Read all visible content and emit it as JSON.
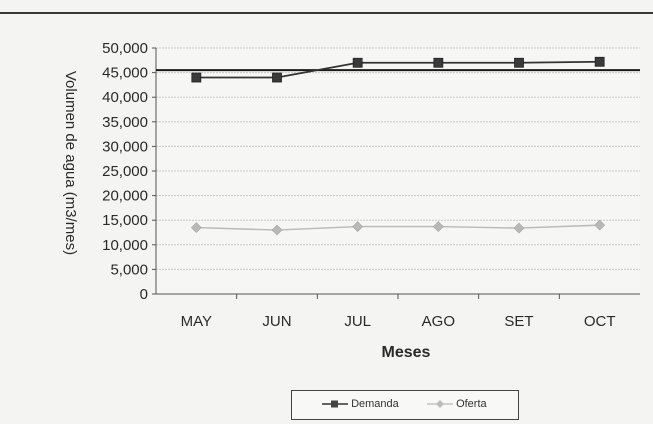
{
  "chart_data": {
    "type": "line",
    "title": "",
    "xlabel": "Meses",
    "ylabel": "Volumen de agua (m3/mes)",
    "categories": [
      "MAY",
      "JUN",
      "JUL",
      "AGO",
      "SET",
      "OCT"
    ],
    "ylim": [
      0,
      50000
    ],
    "yticks": [
      "50,000",
      "45,000",
      "40,000",
      "35,000",
      "30,000",
      "25,000",
      "20,000",
      "15,000",
      "10,000",
      "5,000",
      "0"
    ],
    "reference_line": 45500,
    "series": [
      {
        "name": "Demanda",
        "values": [
          44000,
          44000,
          47000,
          47000,
          47000,
          47200
        ],
        "color": "#333333",
        "marker": "square"
      },
      {
        "name": "Oferta",
        "values": [
          13500,
          13000,
          13700,
          13700,
          13400,
          14000
        ],
        "color": "#b8b8b8",
        "marker": "diamond"
      }
    ],
    "grid": true,
    "legend_position": "bottom"
  }
}
